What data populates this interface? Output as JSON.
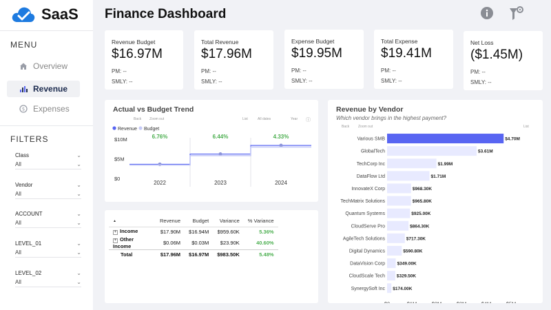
{
  "app": {
    "logo_text": "SaaS"
  },
  "sidebar": {
    "menu_title": "MENU",
    "items": [
      {
        "label": "Overview",
        "icon": "home-icon",
        "active": false
      },
      {
        "label": "Revenue",
        "icon": "chart-bars-icon",
        "active": true
      },
      {
        "label": "Expenses",
        "icon": "coin-icon",
        "active": false
      }
    ],
    "filters_title": "FILTERS",
    "filters": [
      {
        "label": "Class",
        "value": "All"
      },
      {
        "label": "Vendor",
        "value": "All"
      },
      {
        "label": "ACCOUNT",
        "value": "All"
      },
      {
        "label": "LEVEL_01",
        "value": "All"
      },
      {
        "label": "LEVEL_02",
        "value": "All"
      }
    ]
  },
  "header": {
    "title": "Finance Dashboard"
  },
  "kpis": [
    {
      "label": "Revenue Budget",
      "value": "$16.97M",
      "pm": "PM: --",
      "smly": "SMLY: --"
    },
    {
      "label": "Total Revenue",
      "value": "$17.96M",
      "pm": "PM: --",
      "smly": "SMLY: --"
    },
    {
      "label": "Expense Budget",
      "value": "$19.95M",
      "pm": "PM: --",
      "smly": "SMLY: --"
    },
    {
      "label": "Total Expense",
      "value": "$19.41M",
      "pm": "PM: --",
      "smly": "SMLY: --"
    },
    {
      "label": "Net Loss",
      "value": "($1.45M)",
      "pm": "PM: --",
      "smly": "SMLY: --"
    }
  ],
  "trend": {
    "toolbar": {
      "back": "Back",
      "zoom": "Zoom out",
      "list": "List",
      "all_dates": "All dates",
      "year": "Year"
    }
  },
  "vendor": {
    "toolbar": {
      "back": "Back",
      "zoom": "Zoom out",
      "list": "List"
    }
  },
  "table": {
    "headers": [
      "",
      "Revenue",
      "Budget",
      "Variance",
      "% Variance"
    ],
    "rows": [
      {
        "name": "Income",
        "revenue": "$17.90M",
        "budget": "$16.94M",
        "variance": "$959.60K",
        "pct": "5.36%",
        "expandable": true
      },
      {
        "name": "Other Income",
        "revenue": "$0.06M",
        "budget": "$0.03M",
        "variance": "$23.90K",
        "pct": "40.60%",
        "expandable": true
      },
      {
        "name": "Total",
        "revenue": "$17.96M",
        "budget": "$16.97M",
        "variance": "$983.50K",
        "pct": "5.48%",
        "expandable": false
      }
    ]
  },
  "colors": {
    "accent": "#5865f2",
    "accent_light": "#c5caf7",
    "positive": "#4caf50",
    "brand": "#1e7be0"
  },
  "chart_data": [
    {
      "type": "line",
      "title": "Actual vs Budget Trend",
      "legend": [
        "Revenue",
        "Budget"
      ],
      "categories": [
        "2022",
        "2023",
        "2024"
      ],
      "y_ticks": [
        "$0",
        "$5M",
        "$10M"
      ],
      "ylim": [
        0,
        10
      ],
      "series": [
        {
          "name": "Revenue",
          "values": [
            3.6,
            6.2,
            8.4
          ]
        },
        {
          "name": "Budget",
          "values": [
            3.4,
            5.8,
            8.0
          ]
        }
      ],
      "annotations": [
        "6.76%",
        "6.44%",
        "4.33%"
      ]
    },
    {
      "type": "bar",
      "orientation": "horizontal",
      "title": "Revenue by Vendor",
      "subtitle": "Which vendor brings in the highest payment?",
      "categories": [
        "Various SMB",
        "GlobalTech",
        "TechCorp Inc",
        "DataFlow Ltd",
        "InnovateX Corp",
        "TechMatrix Solutions",
        "Quantum Systems",
        "CloudServe Pro",
        "AgileTech Solutions",
        "Digital Dynamics",
        "DataVision Corp",
        "CloudScale Tech",
        "SynergySoft Inc"
      ],
      "values": [
        4.7,
        3.61,
        1.99,
        1.71,
        0.968,
        0.9658,
        0.925,
        0.8643,
        0.7173,
        0.5908,
        0.349,
        0.3295,
        0.174
      ],
      "labels": [
        "$4.70M",
        "$3.61M",
        "$1.99M",
        "$1.71M",
        "$968.30K",
        "$965.80K",
        "$925.00K",
        "$864.30K",
        "$717.30K",
        "$590.80K",
        "$349.00K",
        "$329.50K",
        "$174.00K"
      ],
      "x_ticks": [
        "$0",
        "$1M",
        "$2M",
        "$3M",
        "$4M",
        "$5M"
      ],
      "xlim": [
        0,
        5
      ]
    }
  ]
}
